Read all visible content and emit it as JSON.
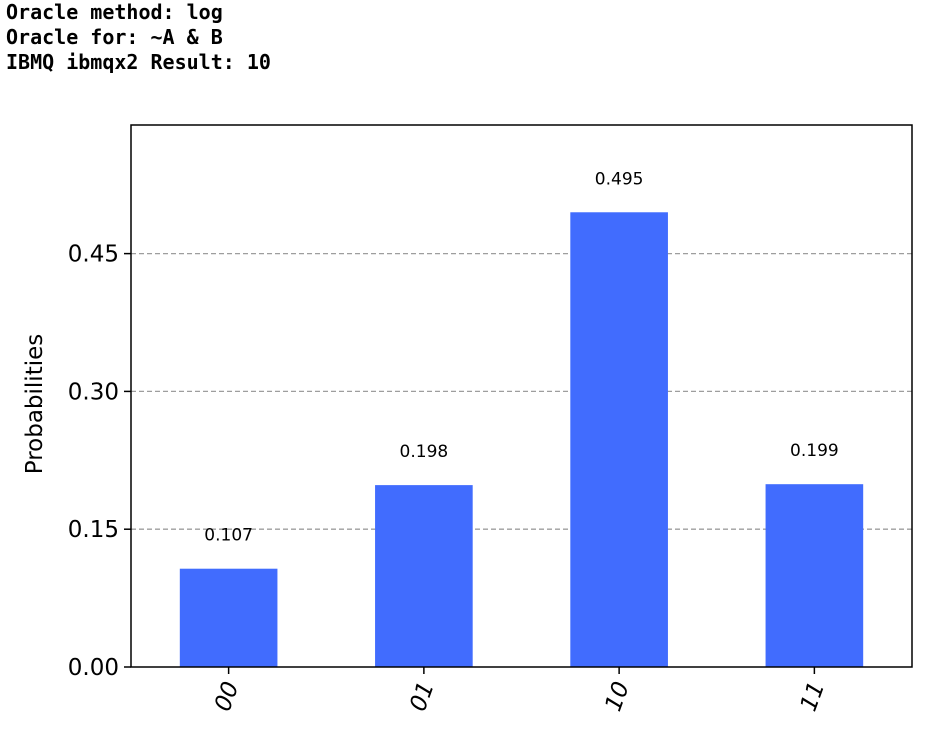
{
  "header": {
    "lines": [
      "Oracle method: log",
      "Oracle for: ~A & B",
      "IBMQ ibmqx2 Result: 10"
    ]
  },
  "colors": {
    "bar": "#416cfe",
    "grid": "#9e9e9e",
    "frame": "#000000"
  },
  "chart_data": {
    "type": "bar",
    "title": "",
    "xlabel": "",
    "ylabel": "Probabilities",
    "categories": [
      "00",
      "01",
      "10",
      "11"
    ],
    "values": [
      0.107,
      0.198,
      0.495,
      0.199
    ],
    "value_labels": [
      "0.107",
      "0.198",
      "0.495",
      "0.199"
    ],
    "ylim": [
      0,
      0.59
    ],
    "yticks": [
      0.0,
      0.15,
      0.3,
      0.45
    ],
    "ytick_labels": [
      "0.00",
      "0.15",
      "0.30",
      "0.45"
    ],
    "grid": "horizontal dashed",
    "xtick_rotation": "rotated ~70 degrees"
  }
}
